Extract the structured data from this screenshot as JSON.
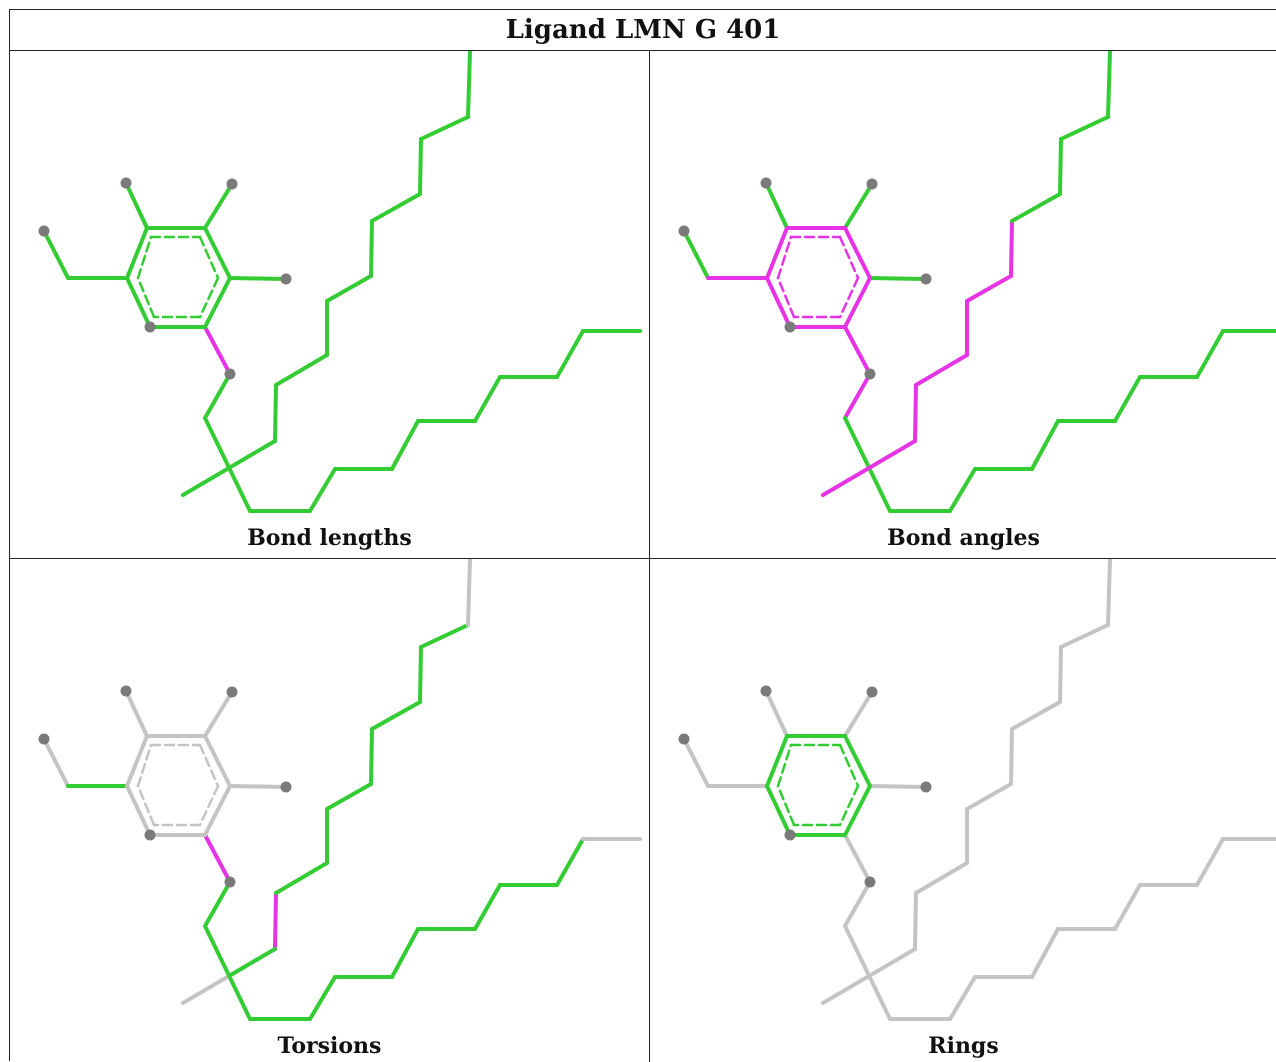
{
  "title": "Ligand LMN G 401",
  "colors": {
    "ok": "#33cc33",
    "outlier": "#e633e6",
    "neutral": "#c4c4c4",
    "atom": "#7a7a7a"
  },
  "panels": [
    {
      "id": "bond-lengths",
      "caption": "Bond lengths"
    },
    {
      "id": "bond-angles",
      "caption": "Bond angles"
    },
    {
      "id": "torsions",
      "caption": "Torsions"
    },
    {
      "id": "rings",
      "caption": "Rings"
    }
  ]
}
